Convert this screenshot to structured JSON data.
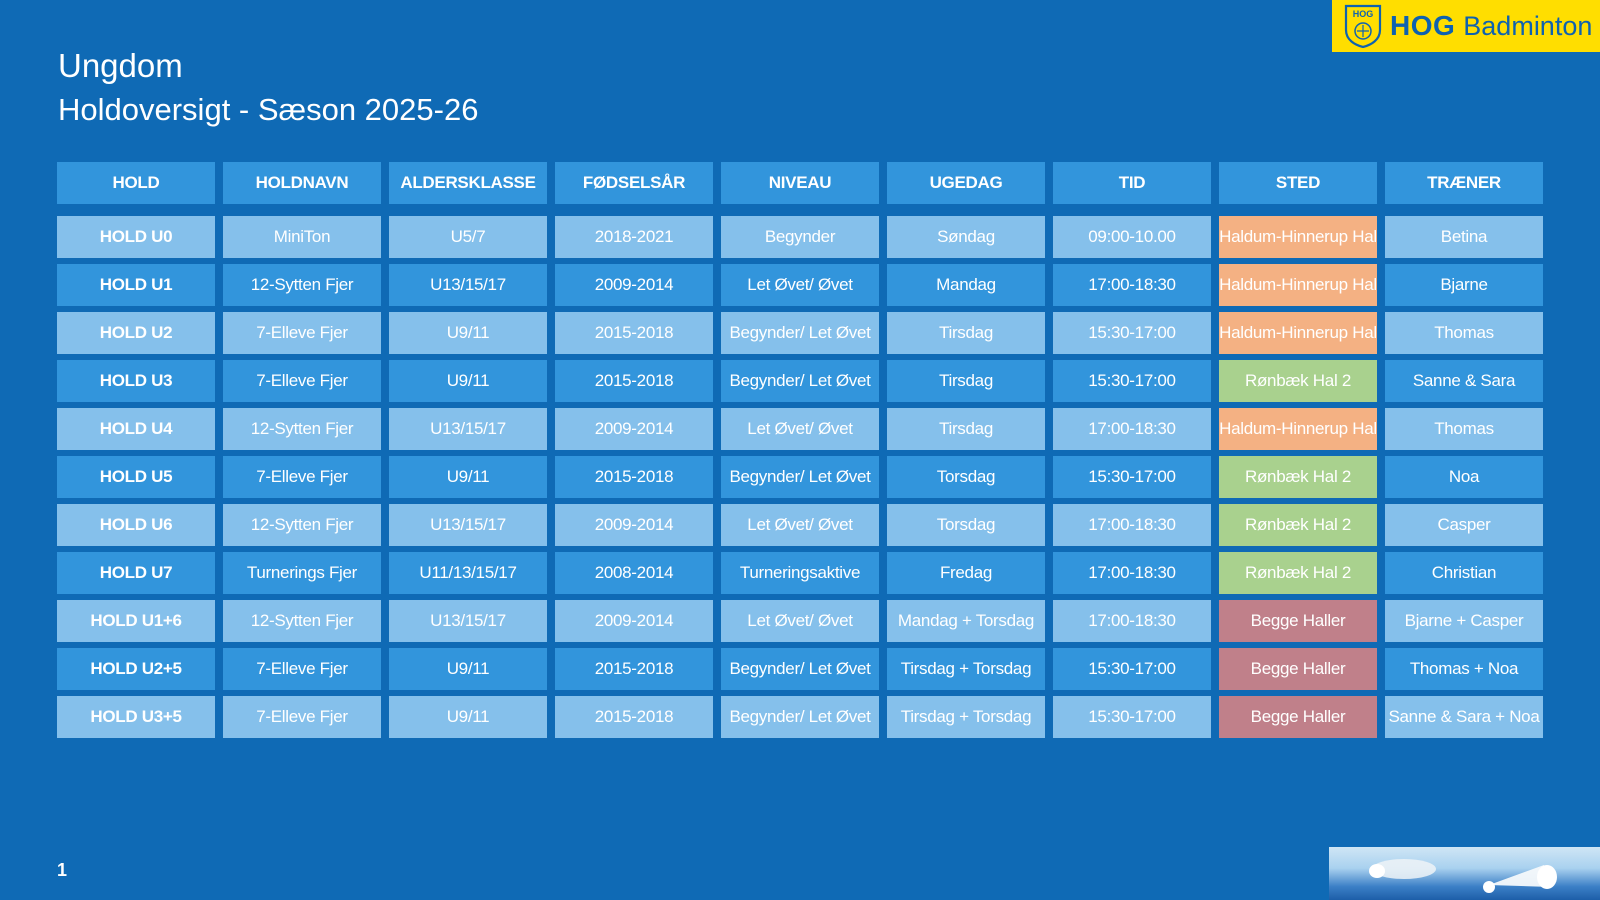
{
  "logo": {
    "badge_text": "HOG",
    "brand_bold": "HOG",
    "brand_rest": "Badminton"
  },
  "title": {
    "line1": "Ungdom",
    "line2": "Holdoversigt - Sæson 2025-26"
  },
  "table": {
    "headers": [
      "HOLD",
      "HOLDNAVN",
      "ALDERSKLASSE",
      "FØDSELSÅR",
      "NIVEAU",
      "UGEDAG",
      "TID",
      "STED",
      "TRÆNER"
    ],
    "rows": [
      [
        "HOLD U0",
        "MiniTon",
        "U5/7",
        "2018-2021",
        "Begynder",
        "Søndag",
        "09:00-10.00",
        "Haldum-Hinnerup Hal",
        "Betina"
      ],
      [
        "HOLD U1",
        "12-Sytten Fjer",
        "U13/15/17",
        "2009-2014",
        "Let Øvet/ Øvet",
        "Mandag",
        "17:00-18:30",
        "Haldum-Hinnerup Hal",
        "Bjarne"
      ],
      [
        "HOLD U2",
        "7-Elleve Fjer",
        "U9/11",
        "2015-2018",
        "Begynder/ Let Øvet",
        "Tirsdag",
        "15:30-17:00",
        "Haldum-Hinnerup Hal",
        "Thomas"
      ],
      [
        "HOLD U3",
        "7-Elleve Fjer",
        "U9/11",
        "2015-2018",
        "Begynder/ Let Øvet",
        "Tirsdag",
        "15:30-17:00",
        "Rønbæk Hal 2",
        "Sanne & Sara"
      ],
      [
        "HOLD U4",
        "12-Sytten Fjer",
        "U13/15/17",
        "2009-2014",
        "Let Øvet/ Øvet",
        "Tirsdag",
        "17:00-18:30",
        "Haldum-Hinnerup Hal",
        "Thomas"
      ],
      [
        "HOLD U5",
        "7-Elleve Fjer",
        "U9/11",
        "2015-2018",
        "Begynder/ Let Øvet",
        "Torsdag",
        "15:30-17:00",
        "Rønbæk Hal 2",
        "Noa"
      ],
      [
        "HOLD U6",
        "12-Sytten Fjer",
        "U13/15/17",
        "2009-2014",
        "Let Øvet/ Øvet",
        "Torsdag",
        "17:00-18:30",
        "Rønbæk Hal 2",
        "Casper"
      ],
      [
        "HOLD U7",
        "Turnerings Fjer",
        "U11/13/15/17",
        "2008-2014",
        "Turneringsaktive",
        "Fredag",
        "17:00-18:30",
        "Rønbæk Hal 2",
        "Christian"
      ],
      [
        "HOLD U1+6",
        "12-Sytten Fjer",
        "U13/15/17",
        "2009-2014",
        "Let Øvet/ Øvet",
        "Mandag + Torsdag",
        "17:00-18:30",
        "Begge Haller",
        "Bjarne + Casper"
      ],
      [
        "HOLD U2+5",
        "7-Elleve Fjer",
        "U9/11",
        "2015-2018",
        "Begynder/ Let Øvet",
        "Tirsdag + Torsdag",
        "15:30-17:00",
        "Begge Haller",
        "Thomas + Noa"
      ],
      [
        "HOLD U3+5",
        "7-Elleve Fjer",
        "U9/11",
        "2015-2018",
        "Begynder/ Let Øvet",
        "Tirsdag + Torsdag",
        "15:30-17:00",
        "Begge Haller",
        "Sanne & Sara + Noa"
      ]
    ],
    "place_colors": {
      "Haldum-Hinnerup Hal": "#f4b183",
      "Rønbæk Hal 2": "#a9d18e",
      "Begge Haller": "#c0808a"
    }
  },
  "footer": {
    "page_number": "1"
  },
  "colors": {
    "background": "#0f6ab5",
    "header_cell": "#3295dc",
    "light_row": "#85c0eb",
    "logo_bg": "#ffde00",
    "logo_text": "#0e62b0"
  }
}
